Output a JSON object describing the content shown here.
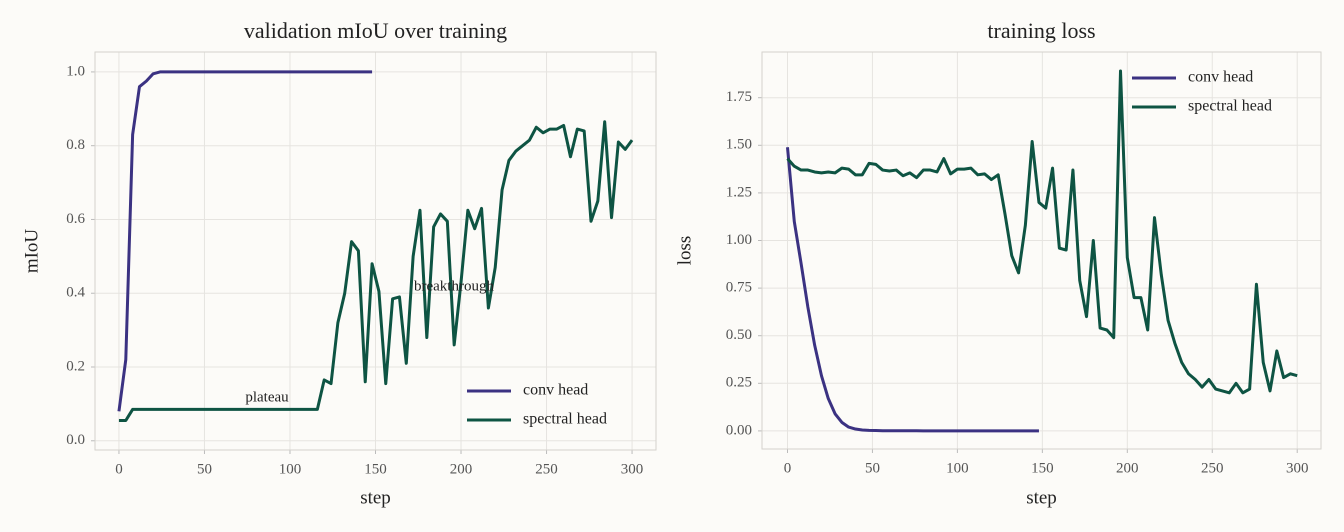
{
  "chart_data": [
    {
      "type": "line",
      "title": "validation mIoU over training",
      "xlabel": "step",
      "ylabel": "mIoU",
      "x": [
        0,
        4,
        8,
        12,
        16,
        20,
        24,
        28,
        32,
        36,
        40,
        44,
        48,
        52,
        56,
        60,
        64,
        68,
        72,
        76,
        80,
        84,
        88,
        92,
        96,
        100,
        104,
        108,
        112,
        116,
        120,
        124,
        128,
        132,
        136,
        140,
        144,
        148,
        152,
        156,
        160,
        164,
        168,
        172,
        176,
        180,
        184,
        188,
        192,
        196,
        200,
        204,
        208,
        212,
        216,
        220,
        224,
        228,
        232,
        236,
        240,
        244,
        248,
        252,
        256,
        260,
        264,
        268,
        272,
        276,
        280,
        284,
        288,
        292,
        296,
        300
      ],
      "series": [
        {
          "name": "conv head",
          "color": "#3b3282",
          "values": [
            0.08,
            0.22,
            0.83,
            0.96,
            0.975,
            0.995,
            1.0,
            1.0,
            1.0,
            1.0,
            1.0,
            1.0,
            1.0,
            1.0,
            1.0,
            1.0,
            1.0,
            1.0,
            1.0,
            1.0,
            1.0,
            1.0,
            1.0,
            1.0,
            1.0,
            1.0,
            1.0,
            1.0,
            1.0,
            1.0,
            1.0,
            1.0,
            1.0,
            1.0,
            1.0,
            1.0,
            1.0,
            1.0,
            null,
            null,
            null,
            null,
            null,
            null,
            null,
            null,
            null,
            null,
            null,
            null,
            null,
            null,
            null,
            null,
            null,
            null,
            null,
            null,
            null,
            null,
            null,
            null,
            null,
            null,
            null,
            null,
            null,
            null,
            null,
            null,
            null,
            null,
            null,
            null,
            null,
            null
          ]
        },
        {
          "name": "spectral head",
          "color": "#0e5443",
          "values": [
            0.055,
            0.055,
            0.085,
            0.085,
            0.085,
            0.085,
            0.085,
            0.085,
            0.085,
            0.085,
            0.085,
            0.085,
            0.085,
            0.085,
            0.085,
            0.085,
            0.085,
            0.085,
            0.085,
            0.085,
            0.085,
            0.085,
            0.085,
            0.085,
            0.085,
            0.085,
            0.085,
            0.085,
            0.085,
            0.085,
            0.165,
            0.155,
            0.32,
            0.4,
            0.54,
            0.515,
            0.16,
            0.48,
            0.405,
            0.155,
            0.385,
            0.39,
            0.21,
            0.5,
            0.625,
            0.28,
            0.58,
            0.615,
            0.595,
            0.26,
            0.43,
            0.625,
            0.575,
            0.63,
            0.36,
            0.47,
            0.68,
            0.76,
            0.785,
            0.8,
            0.815,
            0.85,
            0.835,
            0.845,
            0.845,
            0.855,
            0.77,
            0.845,
            0.84,
            0.595,
            0.65,
            0.865,
            0.605,
            0.81,
            0.79,
            0.815
          ]
        }
      ],
      "annotations": [
        "plateau",
        "breakthrough"
      ],
      "xlim": [
        -14,
        314
      ],
      "xticks": [
        0,
        50,
        100,
        150,
        200,
        250,
        300
      ],
      "ylim": [
        -0.025,
        1.054
      ],
      "yticks": [
        {
          "value": 0,
          "label": "0.0"
        },
        0.2,
        0.4,
        0.6,
        0.8,
        {
          "value": 1,
          "label": "1.0"
        }
      ],
      "grid": true,
      "legend": "lower right"
    },
    {
      "type": "line",
      "title": "training loss",
      "xlabel": "step",
      "ylabel": "loss",
      "x": [
        0,
        4,
        8,
        12,
        16,
        20,
        24,
        28,
        32,
        36,
        40,
        44,
        48,
        52,
        56,
        60,
        64,
        68,
        72,
        76,
        80,
        84,
        88,
        92,
        96,
        100,
        104,
        108,
        112,
        116,
        120,
        124,
        128,
        132,
        136,
        140,
        144,
        148,
        152,
        156,
        160,
        164,
        168,
        172,
        176,
        180,
        184,
        188,
        192,
        196,
        200,
        204,
        208,
        212,
        216,
        220,
        224,
        228,
        232,
        236,
        240,
        244,
        248,
        252,
        256,
        260,
        264,
        268,
        272,
        276,
        280,
        284,
        288,
        292,
        296,
        300
      ],
      "series": [
        {
          "name": "conv head",
          "color": "#3b3282",
          "values": [
            1.49,
            1.1,
            0.88,
            0.65,
            0.45,
            0.29,
            0.17,
            0.09,
            0.045,
            0.02,
            0.01,
            0.005,
            0.003,
            0.002,
            0.001,
            0.001,
            0.001,
            0.001,
            0.001,
            0.001,
            0,
            0,
            0,
            0,
            0,
            0,
            0,
            0,
            0,
            0,
            0,
            0,
            0,
            0,
            0,
            0,
            0,
            0,
            null,
            null,
            null,
            null,
            null,
            null,
            null,
            null,
            null,
            null,
            null,
            null,
            null,
            null,
            null,
            null,
            null,
            null,
            null,
            null,
            null,
            null,
            null,
            null,
            null,
            null,
            null,
            null,
            null,
            null,
            null,
            null,
            null,
            null,
            null,
            null,
            null,
            null
          ]
        },
        {
          "name": "spectral head",
          "color": "#0e5443",
          "values": [
            1.43,
            1.39,
            1.37,
            1.37,
            1.36,
            1.355,
            1.36,
            1.355,
            1.38,
            1.375,
            1.345,
            1.345,
            1.405,
            1.4,
            1.37,
            1.365,
            1.37,
            1.34,
            1.355,
            1.33,
            1.37,
            1.37,
            1.36,
            1.43,
            1.35,
            1.375,
            1.375,
            1.38,
            1.345,
            1.35,
            1.32,
            1.345,
            1.14,
            0.92,
            0.83,
            1.08,
            1.52,
            1.2,
            1.17,
            1.38,
            0.96,
            0.95,
            1.37,
            0.79,
            0.6,
            1.0,
            0.54,
            0.53,
            0.49,
            1.89,
            0.91,
            0.7,
            0.7,
            0.53,
            1.12,
            0.82,
            0.58,
            0.46,
            0.36,
            0.3,
            0.27,
            0.23,
            0.27,
            0.22,
            0.21,
            0.2,
            0.25,
            0.2,
            0.22,
            0.77,
            0.36,
            0.21,
            0.42,
            0.28,
            0.3,
            0.29
          ]
        }
      ],
      "xlim": [
        -15,
        314
      ],
      "xticks": [
        0,
        50,
        100,
        150,
        200,
        250,
        300
      ],
      "ylim": [
        -0.095,
        1.99
      ],
      "yticks": [
        {
          "value": 0,
          "label": "0.00"
        },
        0.25,
        {
          "value": 0.5,
          "label": "0.50"
        },
        0.75,
        {
          "value": 1,
          "label": "1.00"
        },
        1.25,
        {
          "value": 1.5,
          "label": "1.50"
        },
        1.75
      ],
      "grid": true,
      "legend": "upper right"
    }
  ]
}
